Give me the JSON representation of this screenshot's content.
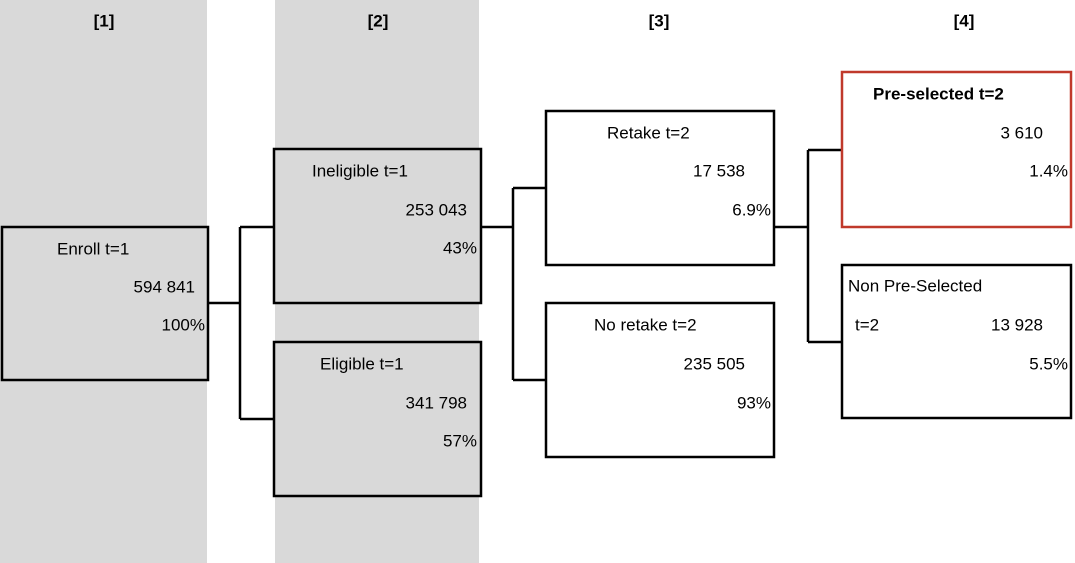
{
  "columns": [
    "[1]",
    "[2]",
    "[3]",
    "[4]"
  ],
  "nodes": [
    {
      "label": "Enroll t=1",
      "count": "594 841",
      "share": "100%"
    },
    {
      "label": "Ineligible t=1",
      "count": "253 043",
      "share": "43%"
    },
    {
      "label": "Eligible t=1",
      "count": "341 798",
      "share": "57%"
    },
    {
      "label": "Retake t=2",
      "count": "17 538",
      "share": "6.9%"
    },
    {
      "label": "No retake t=2",
      "count": "235 505",
      "share": "93%"
    },
    {
      "label": "Pre-selected t=2",
      "count": "3 610",
      "share": "1.4%"
    },
    {
      "label": "Non Pre-Selected",
      "label_suffix": "t=2",
      "count": "13 928",
      "share": "5.5%"
    }
  ]
}
